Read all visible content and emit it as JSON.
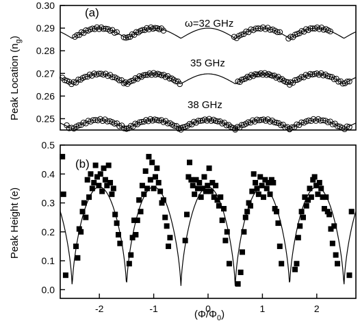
{
  "chart_data": [
    {
      "panel_label": "(a)",
      "type": "scatter",
      "ylabel": "Peak Location (n",
      "ylabel_subscript": "g",
      "ylabel_close": ")",
      "ylim": [
        0.245,
        0.3
      ],
      "xlim": [
        -2.72,
        2.72
      ],
      "y_ticks": [
        "0.30",
        "0.29",
        "0.28",
        "0.27",
        "0.26",
        "0.25"
      ],
      "y_tick_values": [
        0.3,
        0.29,
        0.28,
        0.27,
        0.26,
        0.25
      ],
      "grid": false,
      "series": [
        {
          "annotation": "ω=32 GHz",
          "marker": "open-circle",
          "fit_line": true,
          "baseline": 0.2855,
          "amplitude": 0.0045,
          "point_ranges": [
            [
              -2.45,
              -1.68
            ],
            [
              -1.55,
              -0.82
            ],
            [
              0.48,
              1.32
            ],
            [
              1.48,
              2.25
            ]
          ],
          "points_per_range": 20
        },
        {
          "annotation": "35 GHz",
          "marker": "open-circle",
          "fit_line": true,
          "baseline": 0.2654,
          "amplitude": 0.0044,
          "point_ranges": [
            [
              -2.68,
              -1.55
            ],
            [
              -1.52,
              -0.52
            ],
            [
              0.55,
              1.5
            ],
            [
              1.52,
              2.6
            ]
          ],
          "points_per_range": 28
        },
        {
          "annotation": "38 GHz",
          "marker": "open-circle",
          "fit_line": true,
          "baseline": 0.2455,
          "amplitude": 0.004,
          "point_ranges": [
            [
              -2.6,
              -1.5
            ],
            [
              -1.5,
              -0.5
            ],
            [
              -0.5,
              0.5
            ],
            [
              0.5,
              1.5
            ],
            [
              1.5,
              2.6
            ]
          ],
          "points_per_range": 26
        }
      ]
    },
    {
      "panel_label": "(b)",
      "type": "scatter",
      "xlabel": "(Φ/Φ",
      "xlabel_subscript": "0",
      "xlabel_close": ")",
      "ylabel": "Peak Height (e)",
      "xlim": [
        -2.72,
        2.72
      ],
      "ylim": [
        -0.03,
        0.5
      ],
      "x_ticks": [
        "-2",
        "-1",
        "0",
        "1",
        "2"
      ],
      "x_tick_values": [
        -2,
        -1,
        0,
        1,
        2
      ],
      "y_ticks": [
        "0.5",
        "0.4",
        "0.3",
        "0.2",
        "0.1",
        "0.0"
      ],
      "y_tick_values": [
        0.5,
        0.4,
        0.3,
        0.2,
        0.1,
        0.0
      ],
      "grid": false,
      "series": [
        {
          "marker": "filled-square",
          "fit_line": true,
          "fit_max": 0.355,
          "points": [
            [
              -2.68,
              0.46
            ],
            [
              -2.66,
              0.33
            ],
            [
              -2.62,
              0.05
            ],
            [
              -2.43,
              0.15
            ],
            [
              -2.4,
              0.11
            ],
            [
              -2.37,
              0.21
            ],
            [
              -2.34,
              0.2
            ],
            [
              -2.31,
              0.27
            ],
            [
              -2.28,
              0.3
            ],
            [
              -2.25,
              0.25
            ],
            [
              -2.22,
              0.38
            ],
            [
              -2.19,
              0.32
            ],
            [
              -2.16,
              0.4
            ],
            [
              -2.13,
              0.35
            ],
            [
              -2.1,
              0.37
            ],
            [
              -2.07,
              0.43
            ],
            [
              -2.04,
              0.39
            ],
            [
              -2.01,
              0.36
            ],
            [
              -1.98,
              0.4
            ],
            [
              -1.95,
              0.34
            ],
            [
              -1.92,
              0.42
            ],
            [
              -1.89,
              0.38
            ],
            [
              -1.86,
              0.36
            ],
            [
              -1.83,
              0.43
            ],
            [
              -1.8,
              0.37
            ],
            [
              -1.77,
              0.33
            ],
            [
              -1.74,
              0.35
            ],
            [
              -1.71,
              0.26
            ],
            [
              -1.68,
              0.23
            ],
            [
              -1.65,
              0.19
            ],
            [
              -1.62,
              0.16
            ],
            [
              -1.45,
              0.09
            ],
            [
              -1.42,
              0.12
            ],
            [
              -1.39,
              0.18
            ],
            [
              -1.36,
              0.24
            ],
            [
              -1.33,
              0.19
            ],
            [
              -1.3,
              0.24
            ],
            [
              -1.27,
              0.31
            ],
            [
              -1.24,
              0.27
            ],
            [
              -1.21,
              0.36
            ],
            [
              -1.18,
              0.33
            ],
            [
              -1.15,
              0.41
            ],
            [
              -1.12,
              0.35
            ],
            [
              -1.09,
              0.46
            ],
            [
              -1.06,
              0.38
            ],
            [
              -1.03,
              0.44
            ],
            [
              -1.0,
              0.35
            ],
            [
              -0.97,
              0.39
            ],
            [
              -0.94,
              0.42
            ],
            [
              -0.91,
              0.37
            ],
            [
              -0.88,
              0.34
            ],
            [
              -0.85,
              0.3
            ],
            [
              -0.82,
              0.31
            ],
            [
              -0.79,
              0.25
            ],
            [
              -0.76,
              0.22
            ],
            [
              -0.73,
              0.15
            ],
            [
              -0.7,
              0.18
            ],
            [
              -0.42,
              0.17
            ],
            [
              -0.39,
              0.26
            ],
            [
              -0.36,
              0.39
            ],
            [
              -0.34,
              0.44
            ],
            [
              -0.31,
              0.38
            ],
            [
              -0.28,
              0.36
            ],
            [
              -0.25,
              0.33
            ],
            [
              -0.22,
              0.38
            ],
            [
              -0.19,
              0.35
            ],
            [
              -0.16,
              0.37
            ],
            [
              -0.13,
              0.32
            ],
            [
              -0.1,
              0.35
            ],
            [
              -0.07,
              0.39
            ],
            [
              -0.04,
              0.34
            ],
            [
              -0.01,
              0.36
            ],
            [
              0.02,
              0.42
            ],
            [
              0.05,
              0.34
            ],
            [
              0.08,
              0.37
            ],
            [
              0.11,
              0.32
            ],
            [
              0.14,
              0.36
            ],
            [
              0.17,
              0.31
            ],
            [
              0.2,
              0.29
            ],
            [
              0.23,
              0.32
            ],
            [
              0.26,
              0.24
            ],
            [
              0.29,
              0.28
            ],
            [
              0.32,
              0.17
            ],
            [
              0.35,
              0.2
            ],
            [
              0.39,
              0.09
            ],
            [
              0.55,
              0.02
            ],
            [
              0.6,
              0.06
            ],
            [
              0.63,
              0.13
            ],
            [
              0.66,
              0.2
            ],
            [
              0.69,
              0.25
            ],
            [
              0.72,
              0.27
            ],
            [
              0.75,
              0.3
            ],
            [
              0.78,
              0.29
            ],
            [
              0.81,
              0.34
            ],
            [
              0.84,
              0.4
            ],
            [
              0.87,
              0.37
            ],
            [
              0.9,
              0.35
            ],
            [
              0.93,
              0.33
            ],
            [
              0.96,
              0.39
            ],
            [
              0.99,
              0.36
            ],
            [
              1.02,
              0.32
            ],
            [
              1.05,
              0.38
            ],
            [
              1.08,
              0.35
            ],
            [
              1.11,
              0.37
            ],
            [
              1.14,
              0.33
            ],
            [
              1.17,
              0.38
            ],
            [
              1.2,
              0.37
            ],
            [
              1.23,
              0.28
            ],
            [
              1.26,
              0.27
            ],
            [
              1.29,
              0.23
            ],
            [
              1.32,
              0.15
            ],
            [
              1.35,
              0.09
            ],
            [
              1.6,
              0.07
            ],
            [
              1.63,
              0.09
            ],
            [
              1.66,
              0.18
            ],
            [
              1.69,
              0.22
            ],
            [
              1.72,
              0.27
            ],
            [
              1.75,
              0.25
            ],
            [
              1.78,
              0.32
            ],
            [
              1.81,
              0.29
            ],
            [
              1.84,
              0.31
            ],
            [
              1.87,
              0.35
            ],
            [
              1.9,
              0.32
            ],
            [
              1.93,
              0.38
            ],
            [
              1.96,
              0.39
            ],
            [
              1.99,
              0.36
            ],
            [
              2.02,
              0.33
            ],
            [
              2.05,
              0.37
            ],
            [
              2.08,
              0.35
            ],
            [
              2.11,
              0.32
            ],
            [
              2.14,
              0.28
            ],
            [
              2.17,
              0.32
            ],
            [
              2.2,
              0.27
            ],
            [
              2.23,
              0.26
            ],
            [
              2.26,
              0.21
            ],
            [
              2.29,
              0.16
            ],
            [
              2.32,
              0.22
            ],
            [
              2.35,
              0.12
            ],
            [
              2.38,
              0.09
            ],
            [
              2.6,
              0.05
            ],
            [
              2.64,
              0.27
            ]
          ]
        }
      ]
    }
  ]
}
